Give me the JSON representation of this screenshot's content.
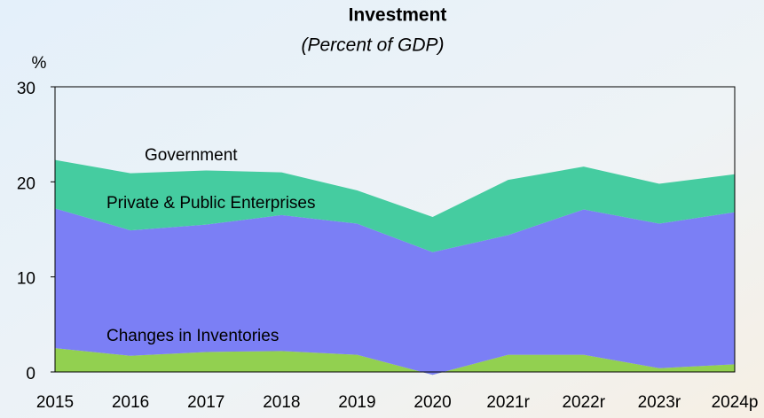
{
  "chart_data": {
    "type": "stacked-area",
    "title": "Investment",
    "subtitle": "(Percent of GDP)",
    "y_label": "%",
    "categories": [
      "2015",
      "2016",
      "2017",
      "2018",
      "2019",
      "2020",
      "2021r",
      "2022r",
      "2023r",
      "2024p"
    ],
    "series": [
      {
        "name": "Changes in Inventories",
        "color": "#92d050",
        "values": [
          2.5,
          1.7,
          2.1,
          2.2,
          1.8,
          -0.3,
          1.8,
          1.8,
          0.4,
          0.8
        ]
      },
      {
        "name": "Private & Public Enterprises",
        "color": "#7b7ff5",
        "values": [
          14.7,
          13.2,
          13.4,
          14.3,
          13.8,
          12.9,
          12.6,
          15.3,
          15.2,
          16.0
        ]
      },
      {
        "name": "Government",
        "color": "#45cca0",
        "values": [
          5.1,
          6.0,
          5.7,
          4.5,
          3.5,
          3.7,
          5.8,
          4.5,
          4.2,
          4.0
        ]
      }
    ],
    "ylim": [
      0,
      30
    ],
    "yticks": [
      0,
      10,
      20,
      30
    ]
  }
}
